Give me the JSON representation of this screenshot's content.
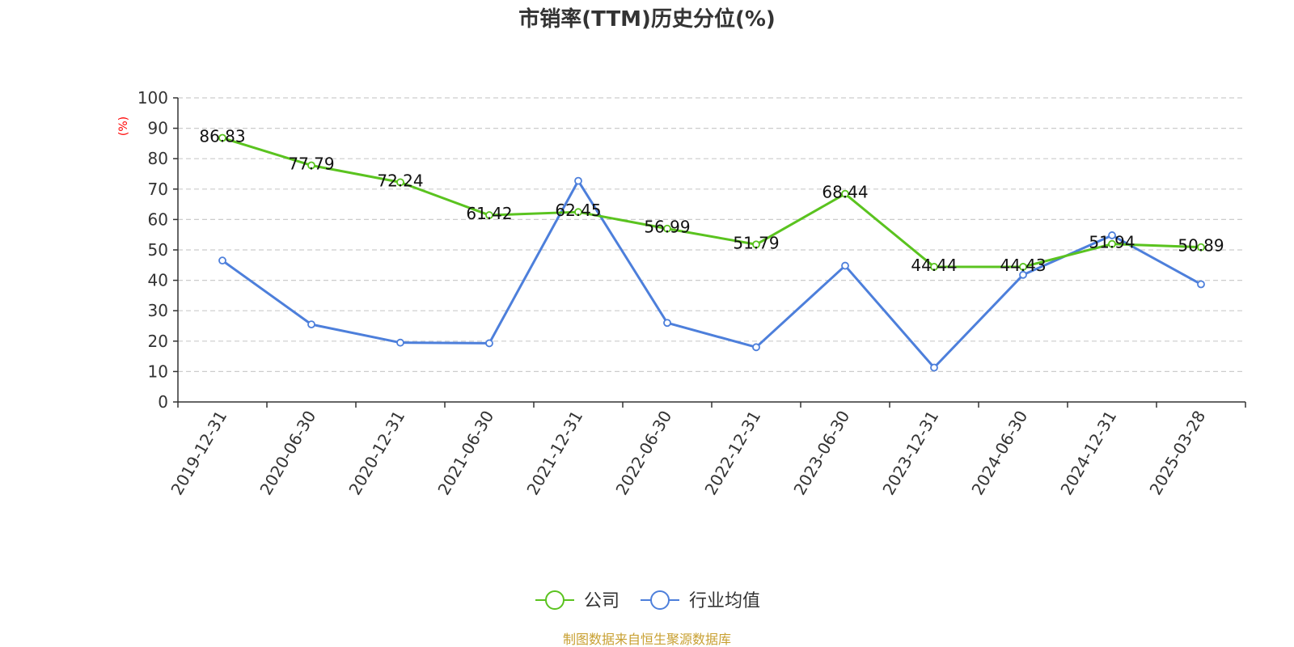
{
  "chart_data": {
    "type": "line",
    "title": "市销率(TTM)历史分位(%)",
    "ylabel": "(%)",
    "xlabel": "",
    "ylim": [
      0,
      100
    ],
    "yticks": [
      0,
      10,
      20,
      30,
      40,
      50,
      60,
      70,
      80,
      90,
      100
    ],
    "grid": true,
    "legend_position": "bottom-center",
    "categories": [
      "2019-12-31",
      "2020-06-30",
      "2020-12-31",
      "2021-06-30",
      "2021-12-31",
      "2022-06-30",
      "2022-12-31",
      "2023-06-30",
      "2023-12-31",
      "2024-06-30",
      "2024-12-31",
      "2025-03-28"
    ],
    "series": [
      {
        "name": "公司",
        "color": "#5ac31f",
        "values": [
          86.83,
          77.79,
          72.24,
          61.42,
          62.45,
          56.99,
          51.79,
          68.44,
          44.44,
          44.43,
          51.94,
          50.89
        ],
        "labels": [
          "86.83",
          "77.79",
          "72.24",
          "61.42",
          "62.45",
          "56.99",
          "51.79",
          "68.44",
          "44.44",
          "44.43",
          "51.94",
          "50.89"
        ]
      },
      {
        "name": "行业均值",
        "color": "#4d7fdb",
        "values": [
          46.5,
          25.5,
          19.5,
          19.3,
          72.7,
          26.0,
          18.0,
          44.8,
          11.3,
          41.8,
          54.8,
          38.7
        ]
      }
    ],
    "footer": "制图数据来自恒生聚源数据库"
  },
  "colors": {
    "title": "#333333",
    "axis": "#333333",
    "grid": "#cccccc",
    "ylabel": "#ff0000",
    "footer": "#c8a032"
  }
}
